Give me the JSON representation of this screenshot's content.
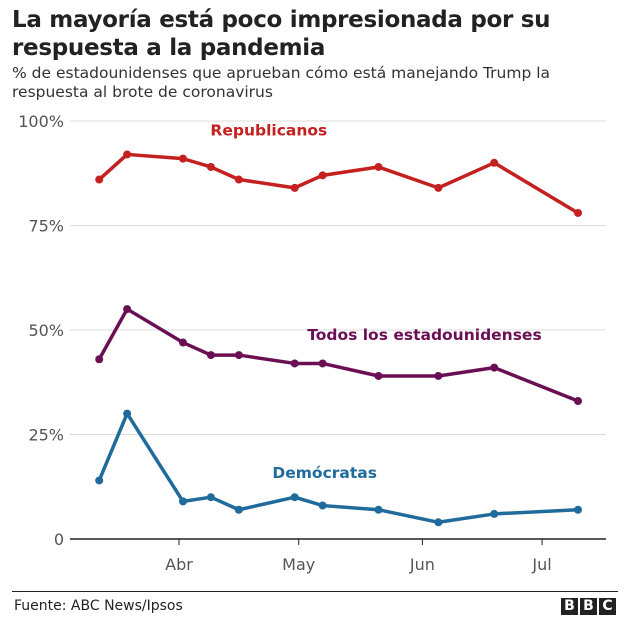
{
  "header": {
    "title": "La mayoría está poco impresionada por su respuesta a la pandemia",
    "subtitle": "% de estadounidenses que aprueban cómo está manejando Trump la respuesta al brote de coronavirus"
  },
  "footer": {
    "source": "Fuente: ABC News/Ipsos",
    "logo": [
      "B",
      "B",
      "C"
    ]
  },
  "chart_data": {
    "type": "line",
    "title": "La mayoría está poco impresionada por su respuesta a la pandemia",
    "xlabel": "",
    "ylabel": "",
    "x_unit": "days since 1 Mar 2020",
    "x": [
      11,
      18,
      32,
      39,
      46,
      60,
      67,
      81,
      96,
      110,
      131
    ],
    "xlim": [
      0,
      138
    ],
    "xticks": [
      {
        "value": 31,
        "label": "Abr"
      },
      {
        "value": 61,
        "label": "May"
      },
      {
        "value": 92,
        "label": "Jun"
      },
      {
        "value": 122,
        "label": "Jul"
      }
    ],
    "ylim": [
      0,
      100
    ],
    "yticks": [
      {
        "value": 0,
        "label": "0"
      },
      {
        "value": 25,
        "label": "25%"
      },
      {
        "value": 50,
        "label": "50%"
      },
      {
        "value": 75,
        "label": "75%"
      },
      {
        "value": 100,
        "label": "100%"
      }
    ],
    "grid": true,
    "series": [
      {
        "name": "Republicanos",
        "color": "#c4201f",
        "values": [
          86,
          92,
          91,
          89,
          86,
          84,
          87,
          89,
          84,
          90,
          78
        ],
        "label_at": [
          46,
          98
        ]
      },
      {
        "name": "Todos los estadounidenses",
        "color": "#6b0f55",
        "values": [
          43,
          55,
          47,
          44,
          44,
          42,
          42,
          39,
          39,
          41,
          33
        ],
        "label_at": [
          85,
          49
        ]
      },
      {
        "name": "Demócratas",
        "color": "#1f6b9c",
        "values": [
          14,
          30,
          9,
          10,
          7,
          10,
          8,
          7,
          4,
          6,
          7
        ],
        "label_at": [
          60,
          16
        ]
      }
    ]
  }
}
